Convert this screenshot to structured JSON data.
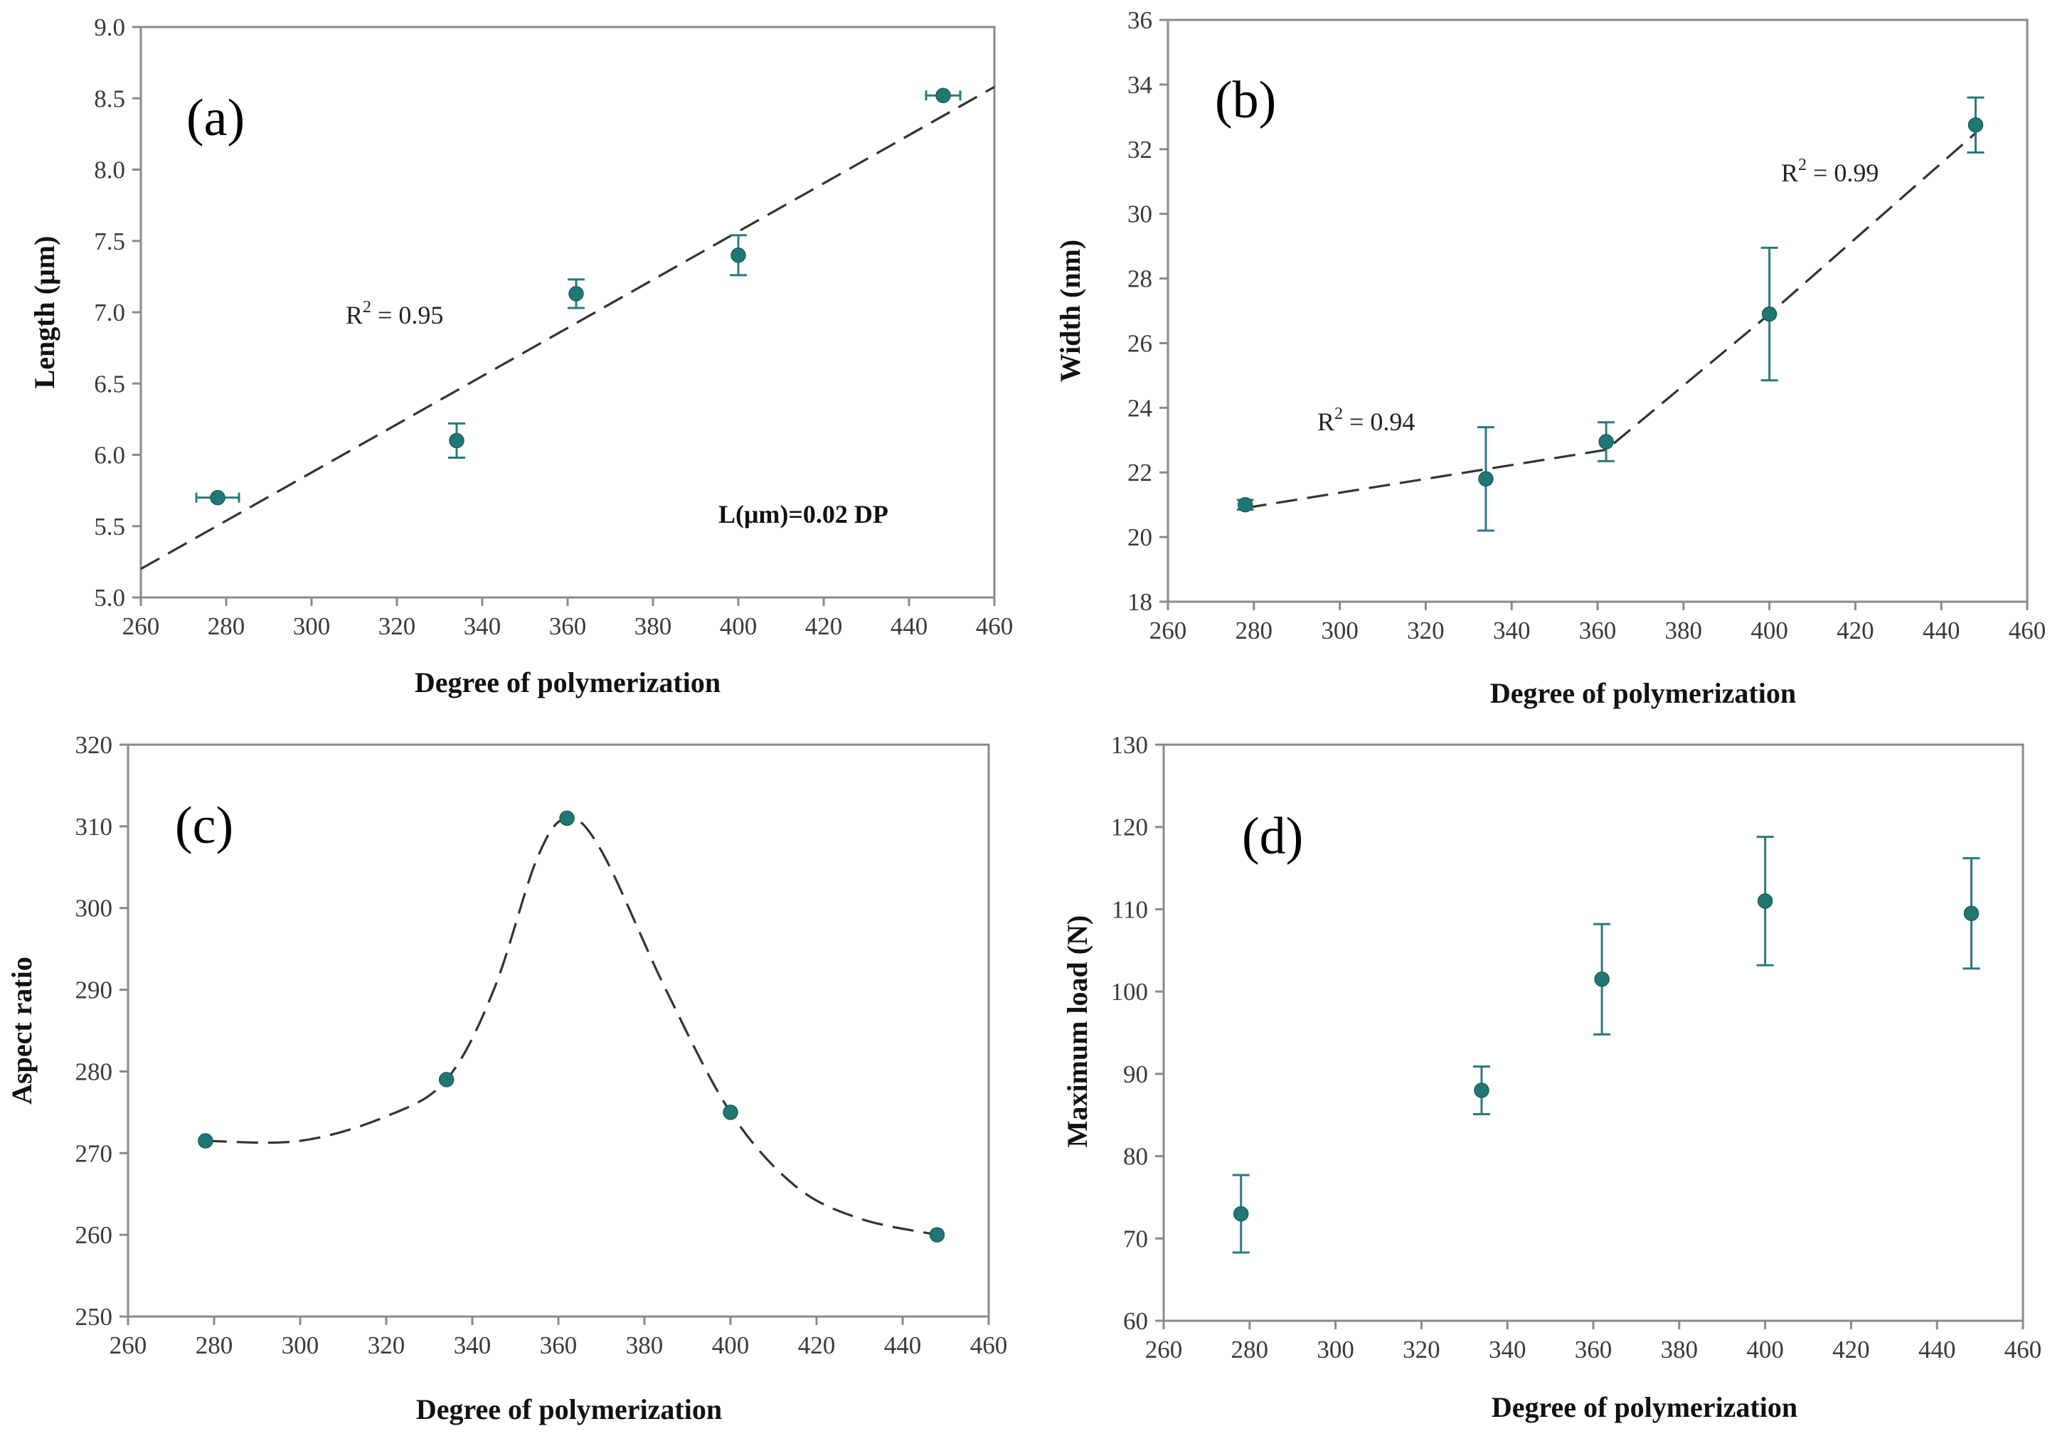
{
  "chart_data": [
    {
      "type": "scatter",
      "panel_label": "(a)",
      "xlabel": "Degree of polymerization",
      "ylabel": "Length (μm)",
      "xlim": [
        260,
        460
      ],
      "ylim": [
        5.0,
        9.0
      ],
      "x_ticks": [
        "260",
        "280",
        "300",
        "320",
        "340",
        "360",
        "380",
        "400",
        "420",
        "440",
        "460"
      ],
      "y_ticks": [
        "5.0",
        "5.5",
        "6.0",
        "6.5",
        "7.0",
        "7.5",
        "8.0",
        "8.5",
        "9.0"
      ],
      "x": [
        278,
        334,
        362,
        400,
        448
      ],
      "y": [
        5.7,
        6.1,
        7.13,
        7.4,
        8.52
      ],
      "error_x": [
        5,
        0,
        0,
        0,
        4
      ],
      "error_y": [
        0,
        0.12,
        0.1,
        0.14,
        0
      ],
      "trend_line": {
        "style": "dashed",
        "x": [
          260,
          460
        ],
        "y": [
          5.2,
          8.58
        ]
      },
      "annotations": [
        {
          "text_base": "R",
          "sup": "2",
          "text_rest": " = 0.95"
        },
        {
          "text": "L(μm)=0.02 DP"
        }
      ],
      "grid": false
    },
    {
      "type": "scatter",
      "panel_label": "(b)",
      "xlabel": "Degree of polymerization",
      "ylabel": "Width (nm)",
      "xlim": [
        260,
        460
      ],
      "ylim": [
        18,
        36
      ],
      "x_ticks": [
        "260",
        "280",
        "300",
        "320",
        "340",
        "360",
        "380",
        "400",
        "420",
        "440",
        "460"
      ],
      "y_ticks": [
        "18",
        "20",
        "22",
        "24",
        "26",
        "28",
        "30",
        "32",
        "34",
        "36"
      ],
      "x": [
        278,
        334,
        362,
        400,
        448
      ],
      "y": [
        21.0,
        21.8,
        22.95,
        26.9,
        32.75
      ],
      "error_x": [
        0,
        0,
        0,
        0,
        0
      ],
      "error_y": [
        0.15,
        1.6,
        0.6,
        2.05,
        0.85
      ],
      "trend_line": {
        "style": "dashed",
        "x": [
          278,
          362,
          400,
          448
        ],
        "y": [
          20.9,
          22.7,
          26.9,
          32.5
        ]
      },
      "annotations": [
        {
          "text_base": "R",
          "sup": "2",
          "text_rest": " = 0.94"
        },
        {
          "text_base": "R",
          "sup": "2",
          "text_rest": " = 0.99"
        }
      ],
      "grid": false
    },
    {
      "type": "line",
      "panel_label": "(c)",
      "xlabel": "Degree of polymerization",
      "ylabel": "Aspect ratio",
      "xlim": [
        260,
        460
      ],
      "ylim": [
        250,
        320
      ],
      "x_ticks": [
        "260",
        "280",
        "300",
        "320",
        "340",
        "360",
        "380",
        "400",
        "420",
        "440",
        "460"
      ],
      "y_ticks": [
        "250",
        "260",
        "270",
        "280",
        "290",
        "300",
        "310",
        "320"
      ],
      "x": [
        278,
        334,
        362,
        400,
        448
      ],
      "y": [
        271.5,
        279,
        311,
        275,
        260
      ],
      "smooth_curve": {
        "style": "dashed",
        "x": [
          278,
          300,
          320,
          334,
          345,
          355,
          362,
          370,
          385,
          400,
          415,
          430,
          448
        ],
        "y": [
          271.5,
          271.5,
          274.5,
          279,
          290,
          306,
          311,
          307,
          290,
          275,
          266,
          262,
          260
        ]
      },
      "grid": false
    },
    {
      "type": "scatter",
      "panel_label": "(d)",
      "xlabel": "Degree of polymerization",
      "ylabel": "Maximum load (N)",
      "xlim": [
        260,
        460
      ],
      "ylim": [
        60,
        130
      ],
      "x_ticks": [
        "260",
        "280",
        "300",
        "320",
        "340",
        "360",
        "380",
        "400",
        "420",
        "440",
        "460"
      ],
      "y_ticks": [
        "60",
        "70",
        "80",
        "90",
        "100",
        "110",
        "120",
        "130"
      ],
      "x": [
        278,
        334,
        362,
        400,
        448
      ],
      "y": [
        73,
        88,
        101.5,
        111,
        109.5
      ],
      "error_x": [
        0,
        0,
        0,
        0,
        0
      ],
      "error_y": [
        4.7,
        2.9,
        6.7,
        7.8,
        6.7
      ],
      "grid": false
    }
  ]
}
